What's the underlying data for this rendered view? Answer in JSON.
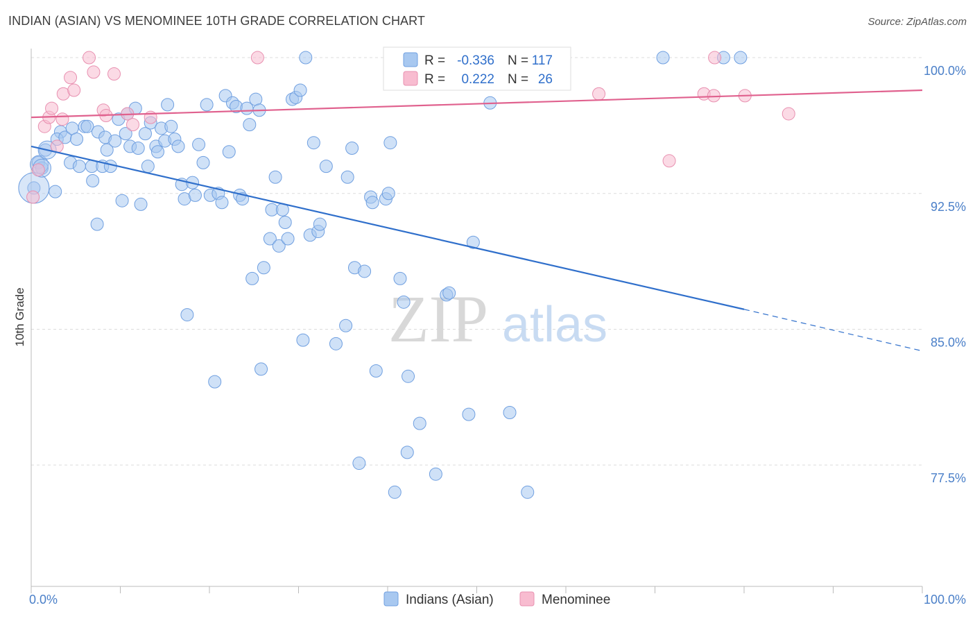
{
  "title": "INDIAN (ASIAN) VS MENOMINEE 10TH GRADE CORRELATION CHART",
  "source": "Source: ZipAtlas.com",
  "watermark": {
    "zip": "ZIP",
    "atlas": "atlas"
  },
  "legend": {
    "r_label": "R =",
    "n_label": "N =",
    "rows": [
      {
        "r": "-0.336",
        "n": "117",
        "color": "#a8c8f0",
        "stroke": "#6f9fe0"
      },
      {
        "r": "0.222",
        "n": "26",
        "color": "#f8bcd0",
        "stroke": "#e890b0"
      }
    ]
  },
  "bottom_legend": [
    "Indians (Asian)",
    "Menominee"
  ],
  "chart_data": {
    "type": "scatter",
    "title": "INDIAN (ASIAN) VS MENOMINEE 10TH GRADE CORRELATION CHART",
    "xlabel": "",
    "ylabel": "10th Grade",
    "xlim": [
      0,
      100
    ],
    "ylim": [
      70.8,
      100.5
    ],
    "x_tick_labels": [
      "0.0%",
      "100.0%"
    ],
    "y_ticks": [
      100.0,
      92.5,
      85.0,
      77.5
    ],
    "y_tick_labels": [
      "100.0%",
      "92.5%",
      "85.0%",
      "77.5%"
    ],
    "grid": true,
    "legend_position": "top-center",
    "series": [
      {
        "name": "Indians (Asian)",
        "color": "#6f9fe0",
        "fill": "#a8c8f0",
        "trend": {
          "x0": 0,
          "y0": 95.1,
          "x1": 80,
          "y1": 86.1,
          "dash_to_x": 100,
          "dash_to_y": 83.8
        },
        "points": [
          [
            0.3,
            92.8
          ],
          [
            0.8,
            94.2
          ],
          [
            1.2,
            93.9
          ],
          [
            1.6,
            94.9
          ],
          [
            2.7,
            92.6
          ],
          [
            3.3,
            95.9
          ],
          [
            2.9,
            95.5
          ],
          [
            3.8,
            95.6
          ],
          [
            4.4,
            94.2
          ],
          [
            4.6,
            96.1
          ],
          [
            5.1,
            95.5
          ],
          [
            5.4,
            94.0
          ],
          [
            6.0,
            96.2
          ],
          [
            6.3,
            96.2
          ],
          [
            6.9,
            93.2
          ],
          [
            6.8,
            94.0
          ],
          [
            7.5,
            95.9
          ],
          [
            7.4,
            90.8
          ],
          [
            8.0,
            94.0
          ],
          [
            8.3,
            95.6
          ],
          [
            8.5,
            94.9
          ],
          [
            8.9,
            94.0
          ],
          [
            9.4,
            95.4
          ],
          [
            9.8,
            96.6
          ],
          [
            10.2,
            92.1
          ],
          [
            10.6,
            95.8
          ],
          [
            10.8,
            96.9
          ],
          [
            11.1,
            95.1
          ],
          [
            11.7,
            97.2
          ],
          [
            12.0,
            95.0
          ],
          [
            12.3,
            91.9
          ],
          [
            12.8,
            95.8
          ],
          [
            13.1,
            94.0
          ],
          [
            13.4,
            96.4
          ],
          [
            14.0,
            95.1
          ],
          [
            14.2,
            94.8
          ],
          [
            14.6,
            96.1
          ],
          [
            15.0,
            95.4
          ],
          [
            15.3,
            97.4
          ],
          [
            15.7,
            96.2
          ],
          [
            16.1,
            95.5
          ],
          [
            16.5,
            95.1
          ],
          [
            16.9,
            93.0
          ],
          [
            17.2,
            92.2
          ],
          [
            17.5,
            85.8
          ],
          [
            18.1,
            93.1
          ],
          [
            18.4,
            92.4
          ],
          [
            18.8,
            95.2
          ],
          [
            19.3,
            94.2
          ],
          [
            19.7,
            97.4
          ],
          [
            20.1,
            92.4
          ],
          [
            20.6,
            82.1
          ],
          [
            21.0,
            92.5
          ],
          [
            21.4,
            92.0
          ],
          [
            21.8,
            97.9
          ],
          [
            22.2,
            94.8
          ],
          [
            22.6,
            97.5
          ],
          [
            23.0,
            97.3
          ],
          [
            23.4,
            92.4
          ],
          [
            23.7,
            92.2
          ],
          [
            24.2,
            97.2
          ],
          [
            24.5,
            96.3
          ],
          [
            24.8,
            87.8
          ],
          [
            25.2,
            97.7
          ],
          [
            25.6,
            97.1
          ],
          [
            25.8,
            82.8
          ],
          [
            26.1,
            88.4
          ],
          [
            26.8,
            90.0
          ],
          [
            27.0,
            91.6
          ],
          [
            27.4,
            93.4
          ],
          [
            27.8,
            89.6
          ],
          [
            28.2,
            91.6
          ],
          [
            28.5,
            90.9
          ],
          [
            28.8,
            90.0
          ],
          [
            29.3,
            97.7
          ],
          [
            29.7,
            97.8
          ],
          [
            30.2,
            98.2
          ],
          [
            30.5,
            84.4
          ],
          [
            30.8,
            100.0
          ],
          [
            31.3,
            90.2
          ],
          [
            31.7,
            95.3
          ],
          [
            32.2,
            90.4
          ],
          [
            32.4,
            90.8
          ],
          [
            33.1,
            94.0
          ],
          [
            34.2,
            84.2
          ],
          [
            35.3,
            85.2
          ],
          [
            35.5,
            93.4
          ],
          [
            36.0,
            95.0
          ],
          [
            36.3,
            88.4
          ],
          [
            36.8,
            77.6
          ],
          [
            37.4,
            88.2
          ],
          [
            38.1,
            92.3
          ],
          [
            38.3,
            92.0
          ],
          [
            38.7,
            82.7
          ],
          [
            39.8,
            92.2
          ],
          [
            40.3,
            95.3
          ],
          [
            40.1,
            92.5
          ],
          [
            40.8,
            76.0
          ],
          [
            41.4,
            87.8
          ],
          [
            41.8,
            86.5
          ],
          [
            42.2,
            78.2
          ],
          [
            42.3,
            82.4
          ],
          [
            43.6,
            79.8
          ],
          [
            45.4,
            77.0
          ],
          [
            46.6,
            86.9
          ],
          [
            46.9,
            87.0
          ],
          [
            47.5,
            100.0
          ],
          [
            49.1,
            80.3
          ],
          [
            49.6,
            89.8
          ],
          [
            51.5,
            97.5
          ],
          [
            53.7,
            80.4
          ],
          [
            55.7,
            76.0
          ],
          [
            70.9,
            100.0
          ],
          [
            77.7,
            100.0
          ],
          [
            79.6,
            100.0
          ]
        ],
        "large_points": [
          [
            0.3,
            92.8
          ],
          [
            0.9,
            94.1
          ],
          [
            1.2,
            93.9
          ],
          [
            1.8,
            94.9
          ]
        ]
      },
      {
        "name": "Menominee",
        "color": "#e890b0",
        "fill": "#f8bcd0",
        "trend": {
          "x0": 0,
          "y0": 96.7,
          "x1": 100,
          "y1": 98.2
        },
        "points": [
          [
            0.2,
            92.3
          ],
          [
            0.8,
            93.8
          ],
          [
            1.5,
            96.2
          ],
          [
            2.0,
            96.7
          ],
          [
            2.3,
            97.2
          ],
          [
            2.9,
            95.1
          ],
          [
            3.5,
            96.6
          ],
          [
            3.6,
            98.0
          ],
          [
            4.4,
            98.9
          ],
          [
            4.8,
            98.2
          ],
          [
            6.5,
            100.0
          ],
          [
            7.0,
            99.2
          ],
          [
            8.1,
            97.1
          ],
          [
            8.4,
            96.8
          ],
          [
            9.3,
            99.1
          ],
          [
            10.8,
            96.9
          ],
          [
            11.4,
            96.3
          ],
          [
            13.4,
            96.7
          ],
          [
            25.4,
            100.0
          ],
          [
            63.7,
            98.0
          ],
          [
            71.6,
            94.3
          ],
          [
            76.7,
            100.0
          ],
          [
            75.5,
            98.0
          ],
          [
            76.6,
            97.9
          ],
          [
            80.1,
            97.9
          ],
          [
            85.0,
            96.9
          ]
        ]
      }
    ]
  }
}
